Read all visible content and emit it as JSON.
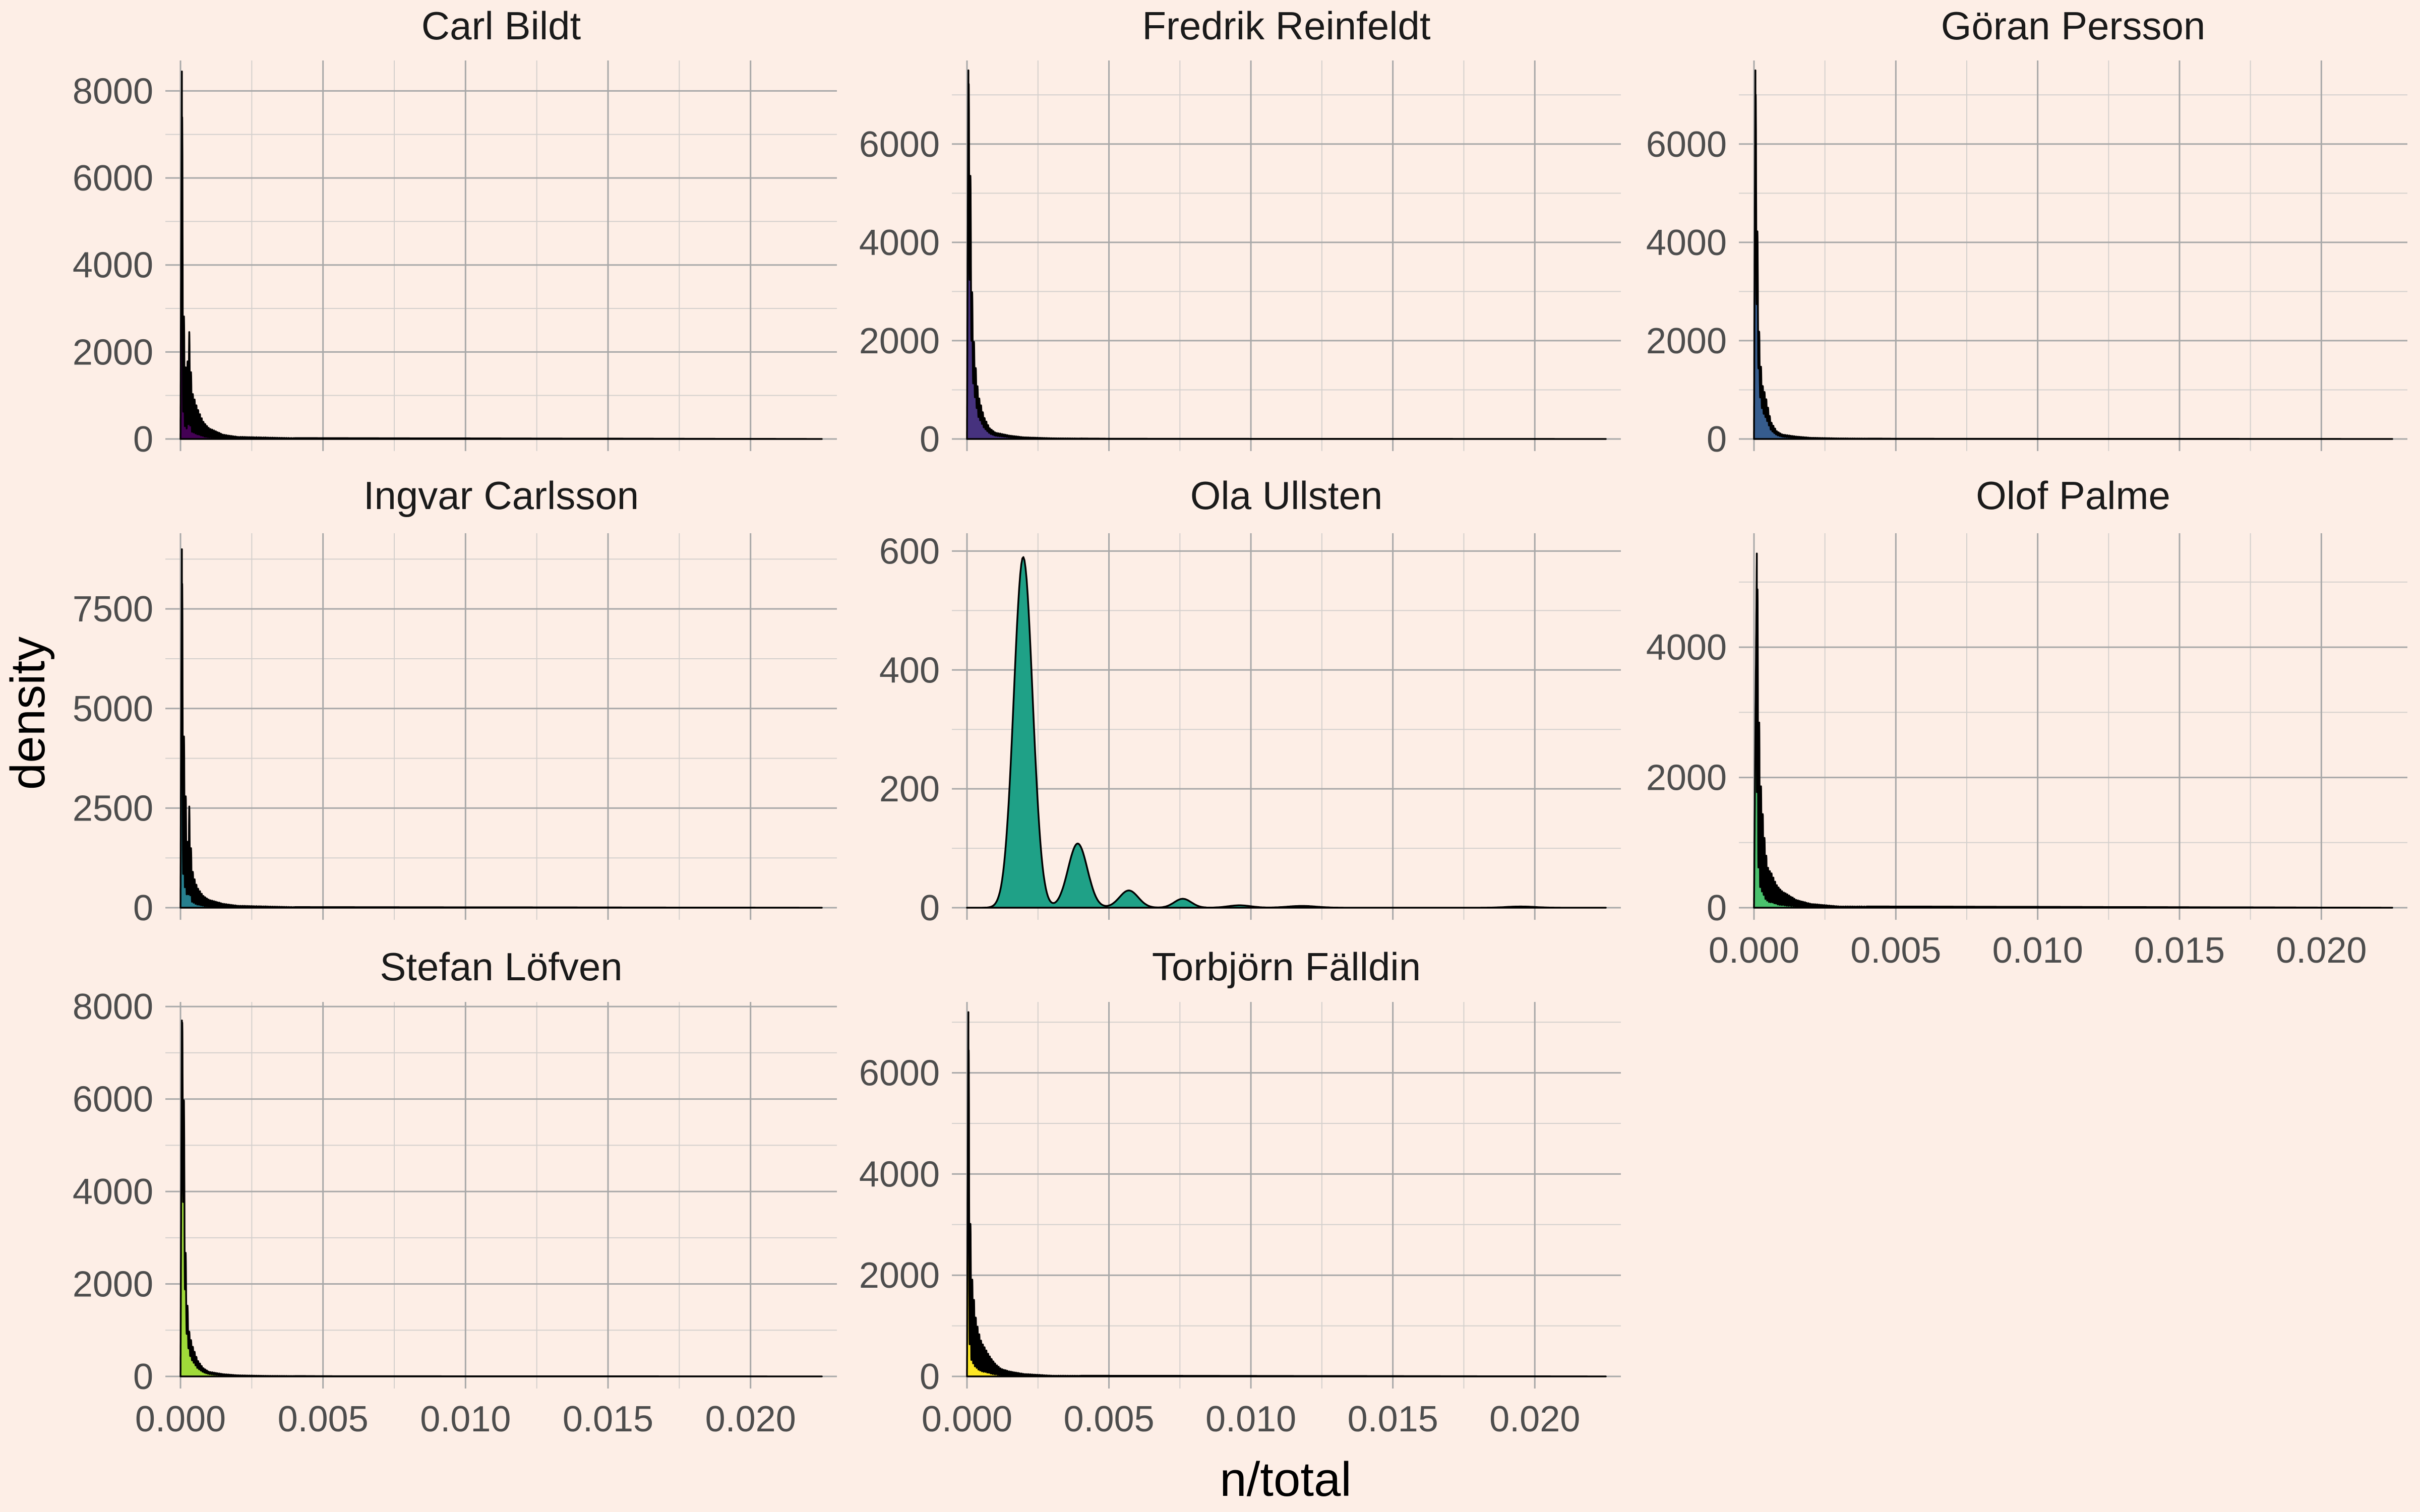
{
  "chart_data": {
    "type": "area",
    "xlabel": "n/total",
    "ylabel": "density",
    "xlim": [
      0,
      0.0225
    ],
    "x_ticks": [
      0.0,
      0.005,
      0.01,
      0.015,
      0.02
    ],
    "x_tick_labels": [
      "0.000",
      "0.005",
      "0.010",
      "0.015",
      "0.020"
    ],
    "grid": true,
    "legend": "none",
    "panels": [
      {
        "name": "Carl Bildt",
        "color": "#440154",
        "ylim": [
          0,
          8700
        ],
        "y_ticks": [
          0,
          2000,
          4000,
          6000,
          8000
        ],
        "y_tick_labels": [
          "0",
          "2000",
          "4000",
          "6000",
          "8000"
        ],
        "profile": "spiky",
        "peak": 8450,
        "x": [
          5e-05,
          0.0001,
          0.00015,
          0.0002,
          0.00025,
          0.0003,
          0.0004,
          0.0005,
          0.0006,
          0.0008,
          0.001,
          0.0015,
          0.002,
          0.004,
          0.0225
        ],
        "y": [
          8450,
          3500,
          2000,
          1500,
          1800,
          2600,
          1100,
          900,
          700,
          400,
          250,
          100,
          50,
          20,
          0
        ]
      },
      {
        "name": "Fredrik Reinfeldt",
        "color": "#46327e",
        "ylim": [
          0,
          7700
        ],
        "y_ticks": [
          0,
          2000,
          4000,
          6000
        ],
        "y_tick_labels": [
          "0",
          "2000",
          "4000",
          "6000"
        ],
        "profile": "smooth",
        "peak": 7500,
        "x": [
          5e-05,
          0.0001,
          0.00015,
          0.0002,
          0.0003,
          0.0004,
          0.0006,
          0.0008,
          0.001,
          0.0015,
          0.002,
          0.003,
          0.005,
          0.0225
        ],
        "y": [
          7500,
          6300,
          4200,
          2400,
          1500,
          900,
          450,
          220,
          130,
          70,
          35,
          15,
          5,
          0
        ]
      },
      {
        "name": "Göran Persson",
        "color": "#365c8d",
        "ylim": [
          0,
          7700
        ],
        "y_ticks": [
          0,
          2000,
          4000,
          6000
        ],
        "y_tick_labels": [
          "0",
          "2000",
          "4000",
          "6000"
        ],
        "profile": "smooth",
        "peak": 7500,
        "x": [
          5e-05,
          0.0001,
          0.00015,
          0.0002,
          0.0003,
          0.0004,
          0.0006,
          0.0008,
          0.001,
          0.0015,
          0.002,
          0.003,
          0.005,
          0.0225
        ],
        "y": [
          7500,
          5200,
          3000,
          1800,
          1100,
          900,
          350,
          160,
          90,
          50,
          25,
          12,
          5,
          0
        ]
      },
      {
        "name": "Ingvar Carlsson",
        "color": "#277f8e",
        "ylim": [
          0,
          9400
        ],
        "y_ticks": [
          0,
          2500,
          5000,
          7500
        ],
        "y_tick_labels": [
          "0",
          "2500",
          "5000",
          "7500"
        ],
        "profile": "spiky",
        "peak": 9000,
        "x": [
          5e-05,
          0.0001,
          0.00015,
          0.0002,
          0.00025,
          0.0003,
          0.0004,
          0.0005,
          0.0006,
          0.0008,
          0.001,
          0.0015,
          0.002,
          0.004,
          0.0225
        ],
        "y": [
          9000,
          5000,
          3500,
          2500,
          1600,
          2700,
          1000,
          700,
          500,
          300,
          200,
          100,
          50,
          15,
          0
        ]
      },
      {
        "name": "Ola Ullsten",
        "color": "#1fa187",
        "ylim": [
          0,
          630
        ],
        "y_ticks": [
          0,
          200,
          400,
          600
        ],
        "y_tick_labels": [
          "0",
          "200",
          "400",
          "600"
        ],
        "profile": "mixture",
        "components": [
          {
            "mu": 0.00198,
            "sigma": 0.00033,
            "amp": 590
          },
          {
            "mu": 0.0039,
            "sigma": 0.00034,
            "amp": 108
          },
          {
            "mu": 0.0057,
            "sigma": 0.00033,
            "amp": 29
          },
          {
            "mu": 0.0076,
            "sigma": 0.0003,
            "amp": 15
          },
          {
            "mu": 0.0096,
            "sigma": 0.0004,
            "amp": 4
          },
          {
            "mu": 0.0118,
            "sigma": 0.0005,
            "amp": 3
          },
          {
            "mu": 0.0195,
            "sigma": 0.0005,
            "amp": 2
          }
        ]
      },
      {
        "name": "Olof Palme",
        "color": "#4ac16d",
        "ylim": [
          0,
          5750
        ],
        "y_ticks": [
          0,
          2000,
          4000
        ],
        "y_tick_labels": [
          "0",
          "2000",
          "4000"
        ],
        "profile": "spiky",
        "peak": 5450,
        "x": [
          0.0001,
          0.00015,
          0.0002,
          0.0003,
          0.0004,
          0.0005,
          0.0006,
          0.0007,
          0.0008,
          0.001,
          0.0012,
          0.0015,
          0.002,
          0.003,
          0.0225
        ],
        "y": [
          5450,
          4300,
          2200,
          1500,
          900,
          600,
          550,
          450,
          350,
          250,
          200,
          120,
          60,
          20,
          0
        ]
      },
      {
        "name": "Stefan Löfven",
        "color": "#a0da39",
        "ylim": [
          0,
          8100
        ],
        "y_ticks": [
          0,
          2000,
          4000,
          6000,
          8000
        ],
        "y_tick_labels": [
          "0",
          "2000",
          "4000",
          "6000",
          "8000"
        ],
        "profile": "smooth",
        "peak": 7700,
        "x": [
          5e-05,
          0.0001,
          0.00015,
          0.0002,
          0.0003,
          0.0004,
          0.0006,
          0.0008,
          0.001,
          0.0015,
          0.002,
          0.003,
          0.005,
          0.0225
        ],
        "y": [
          7700,
          7500,
          4000,
          2000,
          1000,
          700,
          350,
          180,
          100,
          50,
          25,
          12,
          5,
          0
        ]
      },
      {
        "name": "Torbjörn Fälldin",
        "color": "#fde725",
        "ylim": [
          0,
          7400
        ],
        "y_ticks": [
          0,
          2000,
          4000,
          6000
        ],
        "y_tick_labels": [
          "0",
          "2000",
          "4000",
          "6000"
        ],
        "profile": "spiky",
        "peak": 7200,
        "x": [
          5e-05,
          0.0001,
          0.00015,
          0.0002,
          0.0003,
          0.0004,
          0.0005,
          0.0006,
          0.0008,
          0.001,
          0.0012,
          0.0015,
          0.002,
          0.003,
          0.0225
        ],
        "y": [
          7200,
          3700,
          2200,
          1800,
          1200,
          900,
          700,
          600,
          400,
          250,
          150,
          100,
          50,
          15,
          0
        ]
      }
    ]
  }
}
